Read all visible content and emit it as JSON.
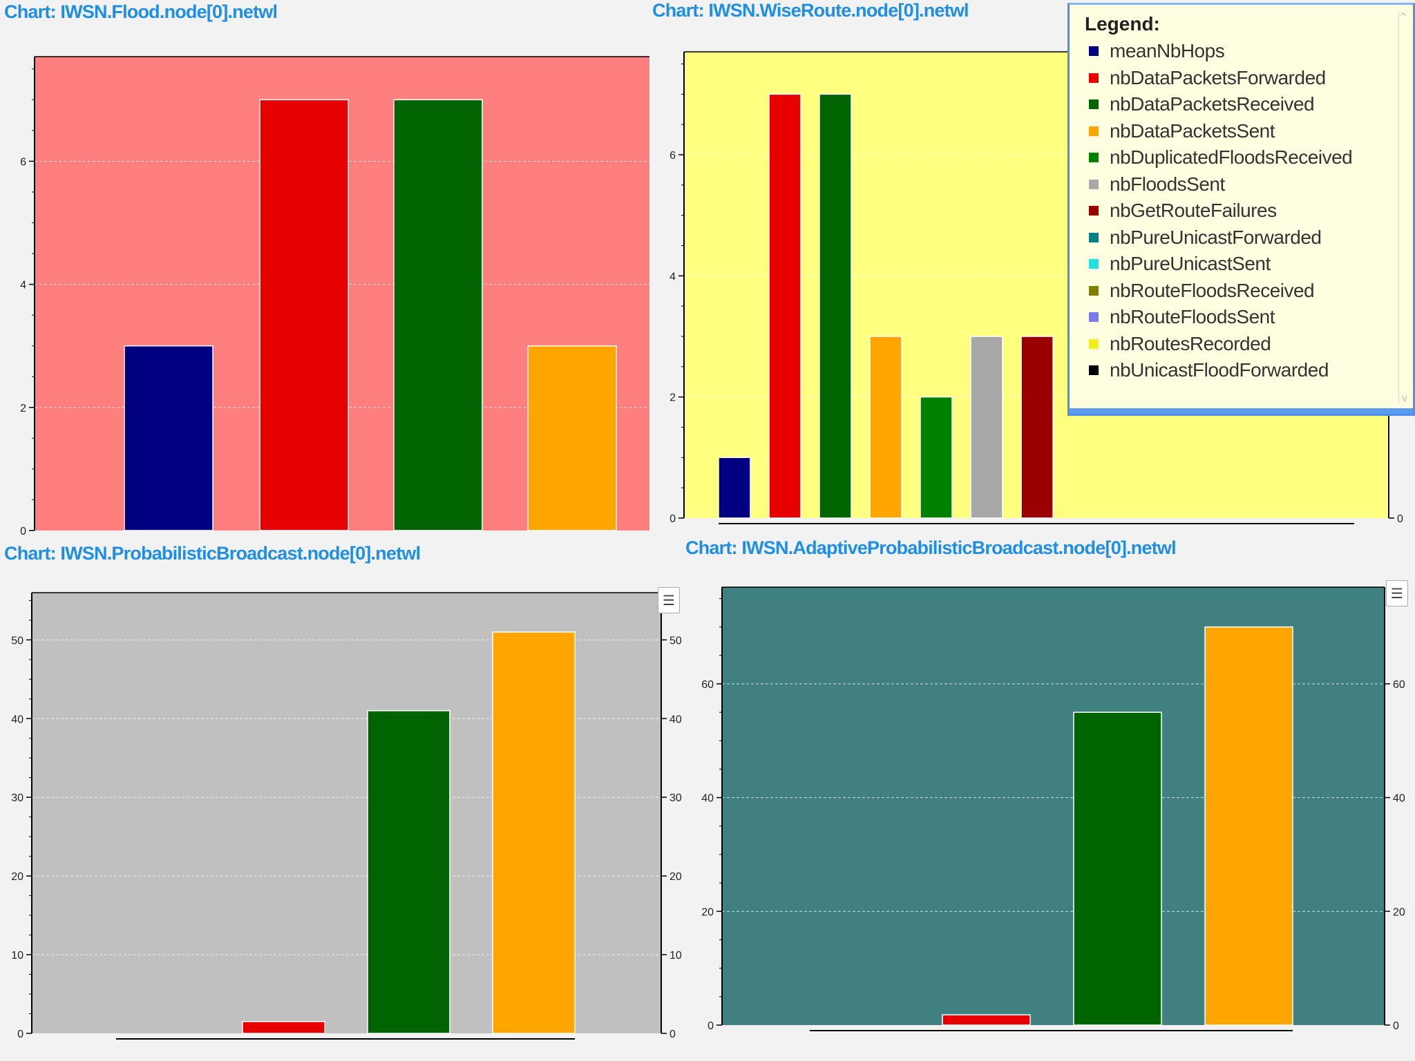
{
  "charts": [
    {
      "title": "Chart: IWSN.Flood.node[0].netwl"
    },
    {
      "title": "Chart: IWSN.WiseRoute.node[0].netwl"
    },
    {
      "title": "Chart: IWSN.ProbabilisticBroadcast.node[0].netwl"
    },
    {
      "title": "Chart: IWSN.AdaptiveProbabilisticBroadcast.node[0].netwl"
    }
  ],
  "legend": {
    "title": "Legend:",
    "items": [
      {
        "label": "meanNbHops",
        "color": "#000080"
      },
      {
        "label": "nbDataPacketsForwarded",
        "color": "#e60000"
      },
      {
        "label": "nbDataPacketsReceived",
        "color": "#006400"
      },
      {
        "label": "nbDataPacketsSent",
        "color": "#ffa500"
      },
      {
        "label": "nbDuplicatedFloodsReceived",
        "color": "#008000"
      },
      {
        "label": "nbFloodsSent",
        "color": "#a8a8a8"
      },
      {
        "label": "nbGetRouteFailures",
        "color": "#990000"
      },
      {
        "label": "nbPureUnicastForwarded",
        "color": "#008080"
      },
      {
        "label": "nbPureUnicastSent",
        "color": "#22e0e0"
      },
      {
        "label": "nbRouteFloodsReceived",
        "color": "#808000"
      },
      {
        "label": "nbRouteFloodsSent",
        "color": "#7b7be6"
      },
      {
        "label": "nbRoutesRecorded",
        "color": "#f0f020"
      },
      {
        "label": "nbUnicastFloodForwarded",
        "color": "#000000"
      }
    ]
  },
  "chart_data": [
    {
      "type": "bar",
      "title": "Chart: IWSN.Flood.node[0].netwl",
      "background": "#ff7f7f",
      "ylim": [
        0,
        7.7
      ],
      "yticks": [
        0,
        2,
        4,
        6
      ],
      "grid": true,
      "series": [
        {
          "name": "meanNbHops",
          "value": 3,
          "color": "#000080"
        },
        {
          "name": "nbDataPacketsForwarded",
          "value": 7,
          "color": "#e60000"
        },
        {
          "name": "nbDataPacketsReceived",
          "value": 7,
          "color": "#006400"
        },
        {
          "name": "nbDataPacketsSent",
          "value": 3,
          "color": "#ffa500"
        }
      ]
    },
    {
      "type": "bar",
      "title": "Chart: IWSN.WiseRoute.node[0].netwl",
      "background": "#ffff80",
      "ylim": [
        0,
        7.7
      ],
      "yticks": [
        0,
        2,
        4,
        6
      ],
      "right_yticks": [
        0
      ],
      "grid": true,
      "legend": "top-right",
      "series": [
        {
          "name": "meanNbHops",
          "value": 1,
          "color": "#000080"
        },
        {
          "name": "nbDataPacketsForwarded",
          "value": 7,
          "color": "#e60000"
        },
        {
          "name": "nbDataPacketsReceived",
          "value": 7,
          "color": "#006400"
        },
        {
          "name": "nbDataPacketsSent",
          "value": 3,
          "color": "#ffa500"
        },
        {
          "name": "nbDuplicatedFloodsReceived",
          "value": 2,
          "color": "#008000"
        },
        {
          "name": "nbFloodsSent",
          "value": 3,
          "color": "#a8a8a8"
        },
        {
          "name": "nbGetRouteFailures",
          "value": 3,
          "color": "#990000"
        }
      ]
    },
    {
      "type": "bar",
      "title": "Chart: IWSN.ProbabilisticBroadcast.node[0].netwl",
      "background": "#c0c0c0",
      "ylim": [
        0,
        56
      ],
      "yticks": [
        0,
        10,
        20,
        30,
        40,
        50
      ],
      "right_yticks": [
        0,
        10,
        20,
        30,
        40,
        50
      ],
      "grid": true,
      "series": [
        {
          "name": "nbDataPacketsForwarded",
          "value": 1.5,
          "color": "#e60000"
        },
        {
          "name": "nbDataPacketsReceived",
          "value": 41,
          "color": "#006400"
        },
        {
          "name": "nbDataPacketsSent",
          "value": 51,
          "color": "#ffa500"
        }
      ]
    },
    {
      "type": "bar",
      "title": "Chart: IWSN.AdaptiveProbabilisticBroadcast.node[0].netwl",
      "background": "#408080",
      "ylim": [
        0,
        77
      ],
      "yticks": [
        0,
        20,
        40,
        60
      ],
      "right_yticks": [
        0,
        20,
        40,
        60
      ],
      "grid": true,
      "series": [
        {
          "name": "nbDataPacketsForwarded",
          "value": 1.8,
          "color": "#e60000"
        },
        {
          "name": "nbDataPacketsReceived",
          "value": 55,
          "color": "#006400"
        },
        {
          "name": "nbDataPacketsSent",
          "value": 70,
          "color": "#ffa500"
        }
      ]
    }
  ]
}
